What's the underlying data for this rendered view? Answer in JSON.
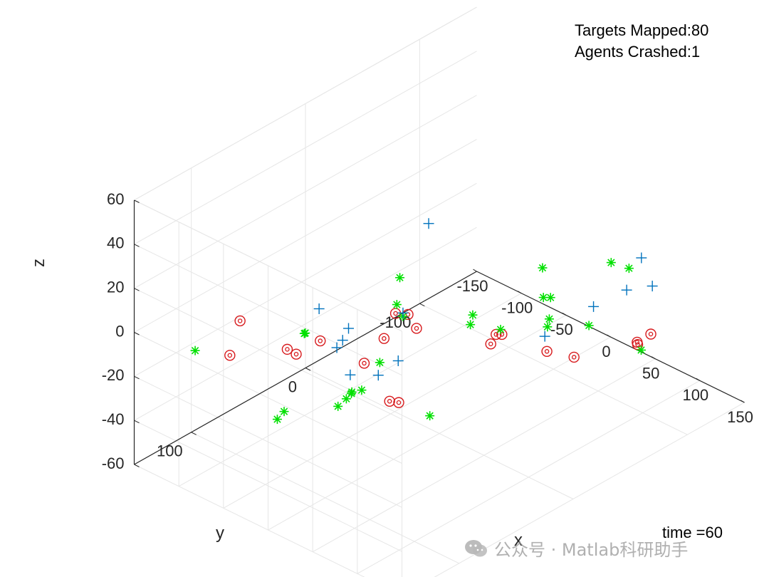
{
  "annotations": {
    "targets_mapped": "Targets Mapped:80",
    "agents_crashed": "Agents Crashed:1",
    "time": "time =60"
  },
  "watermark": {
    "icon": "wechat-icon",
    "text": "公众号 · Matlab科研助手"
  },
  "chart_data": {
    "type": "scatter3d",
    "title": "",
    "xlabel": "x",
    "ylabel": "y",
    "zlabel": "z",
    "xlim": [
      -150,
      150
    ],
    "ylim": [
      -150,
      150
    ],
    "zlim": [
      -60,
      60
    ],
    "xticks": [
      -150,
      -100,
      -50,
      0,
      50,
      100,
      150
    ],
    "yticks": [
      -100,
      0,
      100
    ],
    "zticks": [
      -60,
      -40,
      -20,
      0,
      20,
      40,
      60
    ],
    "grid": true,
    "view": {
      "azimuth": -37.5,
      "elevation": 30
    },
    "colors": {
      "targets": "#d7191c",
      "agents": "#00e000",
      "crosses": "#0072bd"
    },
    "series": [
      {
        "marker": "circle-dot",
        "points": [
          [
            -98.7,
            97.4,
            0
          ],
          [
            -46.7,
            96.7,
            -2.8
          ],
          [
            -105.4,
            101.1,
            -15.9
          ],
          [
            -30.7,
            80.3,
            -0.6
          ],
          [
            -47.4,
            88.3,
            -7.6
          ],
          [
            -8.6,
            41.7,
            -6.4
          ],
          [
            -36.6,
            37.2,
            -24.5
          ],
          [
            -34.1,
            16.9,
            -47.2
          ],
          [
            -30.5,
            11.7,
            -48.6
          ],
          [
            25.3,
            58.1,
            16.5
          ],
          [
            31.3,
            51.9,
            15.4
          ],
          [
            28.7,
            42.4,
            5.8
          ],
          [
            81.8,
            18.9,
            2.4
          ],
          [
            98.8,
            -17.0,
            -8.1
          ],
          [
            42.5,
            -16.5,
            -11.4
          ],
          [
            42.7,
            -21.4,
            -12.8
          ],
          [
            110.9,
            -31.3,
            -12.5
          ],
          [
            139.9,
            -75.9,
            -9.3
          ],
          [
            132.9,
            -69.4,
            -12.5
          ],
          [
            130.5,
            -71.7,
            -14.7
          ]
        ]
      },
      {
        "marker": "asterisk",
        "points": [
          [
            -123.3,
            117.5,
            -12.5
          ],
          [
            -23.2,
            99.3,
            10.0
          ],
          [
            -23.3,
            100.1,
            10.0
          ],
          [
            -34.7,
            114.8,
            -26.9
          ],
          [
            -38.2,
            106.1,
            -26.6
          ],
          [
            -23.1,
            59.0,
            -29.2
          ],
          [
            -31.3,
            64.3,
            -35.1
          ],
          [
            -11.3,
            67.8,
            -23.6
          ],
          [
            -12.3,
            58.4,
            -25.7
          ],
          [
            -33.6,
            55.2,
            -34.8
          ],
          [
            -14.9,
            40.5,
            -18.9
          ],
          [
            30.7,
            61.2,
            22.5
          ],
          [
            15.7,
            44.2,
            9.2
          ],
          [
            -10.0,
            0.5,
            -53.8
          ],
          [
            49.1,
            9.1,
            6.2
          ],
          [
            46.7,
            9.3,
            1.4
          ],
          [
            49.1,
            -15.3,
            -7.5
          ],
          [
            50.4,
            -51.0,
            10.3
          ],
          [
            80.8,
            -28.0,
            9.6
          ],
          [
            90.1,
            -27.0,
            11.7
          ],
          [
            80.5,
            -33.4,
            -1.8
          ],
          [
            96.2,
            -19.5,
            1.8
          ],
          [
            83.6,
            -65.7,
            -13.6
          ],
          [
            102.1,
            -70.7,
            17.2
          ],
          [
            106.5,
            -82.9,
            11.9
          ],
          [
            109.9,
            -90.9,
            -26.9
          ],
          [
            -4.6,
            31.0,
            18.9
          ]
        ]
      },
      {
        "marker": "plus",
        "points": [
          [
            -50.8,
            65.6,
            5.7
          ],
          [
            -35.4,
            62.1,
            -9.9
          ],
          [
            -27.6,
            63.1,
            -4.7
          ],
          [
            -32.9,
            53.8,
            -3.1
          ],
          [
            -34.2,
            51.3,
            -25.2
          ],
          [
            -19.4,
            38.3,
            -26.2
          ],
          [
            -12.7,
            26.1,
            -21.9
          ],
          [
            9.8,
            39.5,
            8.2
          ],
          [
            1.5,
            10.5,
            38.7
          ],
          [
            67.7,
            -39.5,
            -14.0
          ],
          [
            84.0,
            -69.4,
            -6.0
          ],
          [
            98.0,
            -87.5,
            -1.0
          ],
          [
            120.4,
            -82.9,
            19.4
          ],
          [
            147.1,
            -71.6,
            15.2
          ]
        ]
      }
    ]
  }
}
